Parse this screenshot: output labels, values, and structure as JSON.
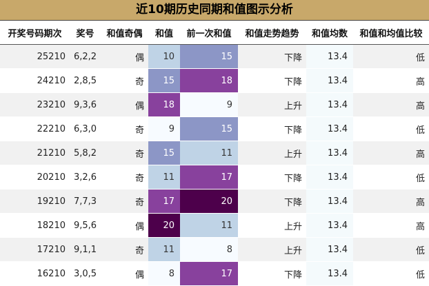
{
  "title": "近10期历史同期和值图示分析",
  "colors": {
    "header_bg": "#c8a86a",
    "avg_bg": "#f4fafc",
    "heat_low": "#f7fbff",
    "heat_mid_low": "#bfd3e6",
    "heat_mid": "#8c96c6",
    "heat_high": "#88419d",
    "heat_max": "#4d004b"
  },
  "chart_data": {
    "type": "table",
    "title": "近10期历史同期和值图示分析",
    "columns": [
      "开奖号码期次",
      "奖号",
      "和值奇偶",
      "和值",
      "前一次和值",
      "和值走势趋势",
      "和值均数",
      "和值和均值比较"
    ],
    "rows": [
      {
        "period": "25210",
        "numbers": "6,2,2",
        "parity": "偶",
        "sum": 10,
        "prev_sum": 15,
        "trend": "下降",
        "avg": "13.4",
        "compare": "低"
      },
      {
        "period": "24210",
        "numbers": "2,8,5",
        "parity": "奇",
        "sum": 15,
        "prev_sum": 18,
        "trend": "下降",
        "avg": "13.4",
        "compare": "高"
      },
      {
        "period": "23210",
        "numbers": "9,3,6",
        "parity": "偶",
        "sum": 18,
        "prev_sum": 9,
        "trend": "上升",
        "avg": "13.4",
        "compare": "高"
      },
      {
        "period": "22210",
        "numbers": "6,3,0",
        "parity": "奇",
        "sum": 9,
        "prev_sum": 15,
        "trend": "下降",
        "avg": "13.4",
        "compare": "低"
      },
      {
        "period": "21210",
        "numbers": "5,8,2",
        "parity": "奇",
        "sum": 15,
        "prev_sum": 11,
        "trend": "上升",
        "avg": "13.4",
        "compare": "高"
      },
      {
        "period": "20210",
        "numbers": "3,2,6",
        "parity": "奇",
        "sum": 11,
        "prev_sum": 17,
        "trend": "下降",
        "avg": "13.4",
        "compare": "低"
      },
      {
        "period": "19210",
        "numbers": "7,7,3",
        "parity": "奇",
        "sum": 17,
        "prev_sum": 20,
        "trend": "下降",
        "avg": "13.4",
        "compare": "高"
      },
      {
        "period": "18210",
        "numbers": "9,5,6",
        "parity": "偶",
        "sum": 20,
        "prev_sum": 11,
        "trend": "上升",
        "avg": "13.4",
        "compare": "高"
      },
      {
        "period": "17210",
        "numbers": "9,1,1",
        "parity": "奇",
        "sum": 11,
        "prev_sum": 8,
        "trend": "上升",
        "avg": "13.4",
        "compare": "低"
      },
      {
        "period": "16210",
        "numbers": "3,0,5",
        "parity": "偶",
        "sum": 8,
        "prev_sum": 17,
        "trend": "下降",
        "avg": "13.4",
        "compare": "低"
      }
    ]
  }
}
